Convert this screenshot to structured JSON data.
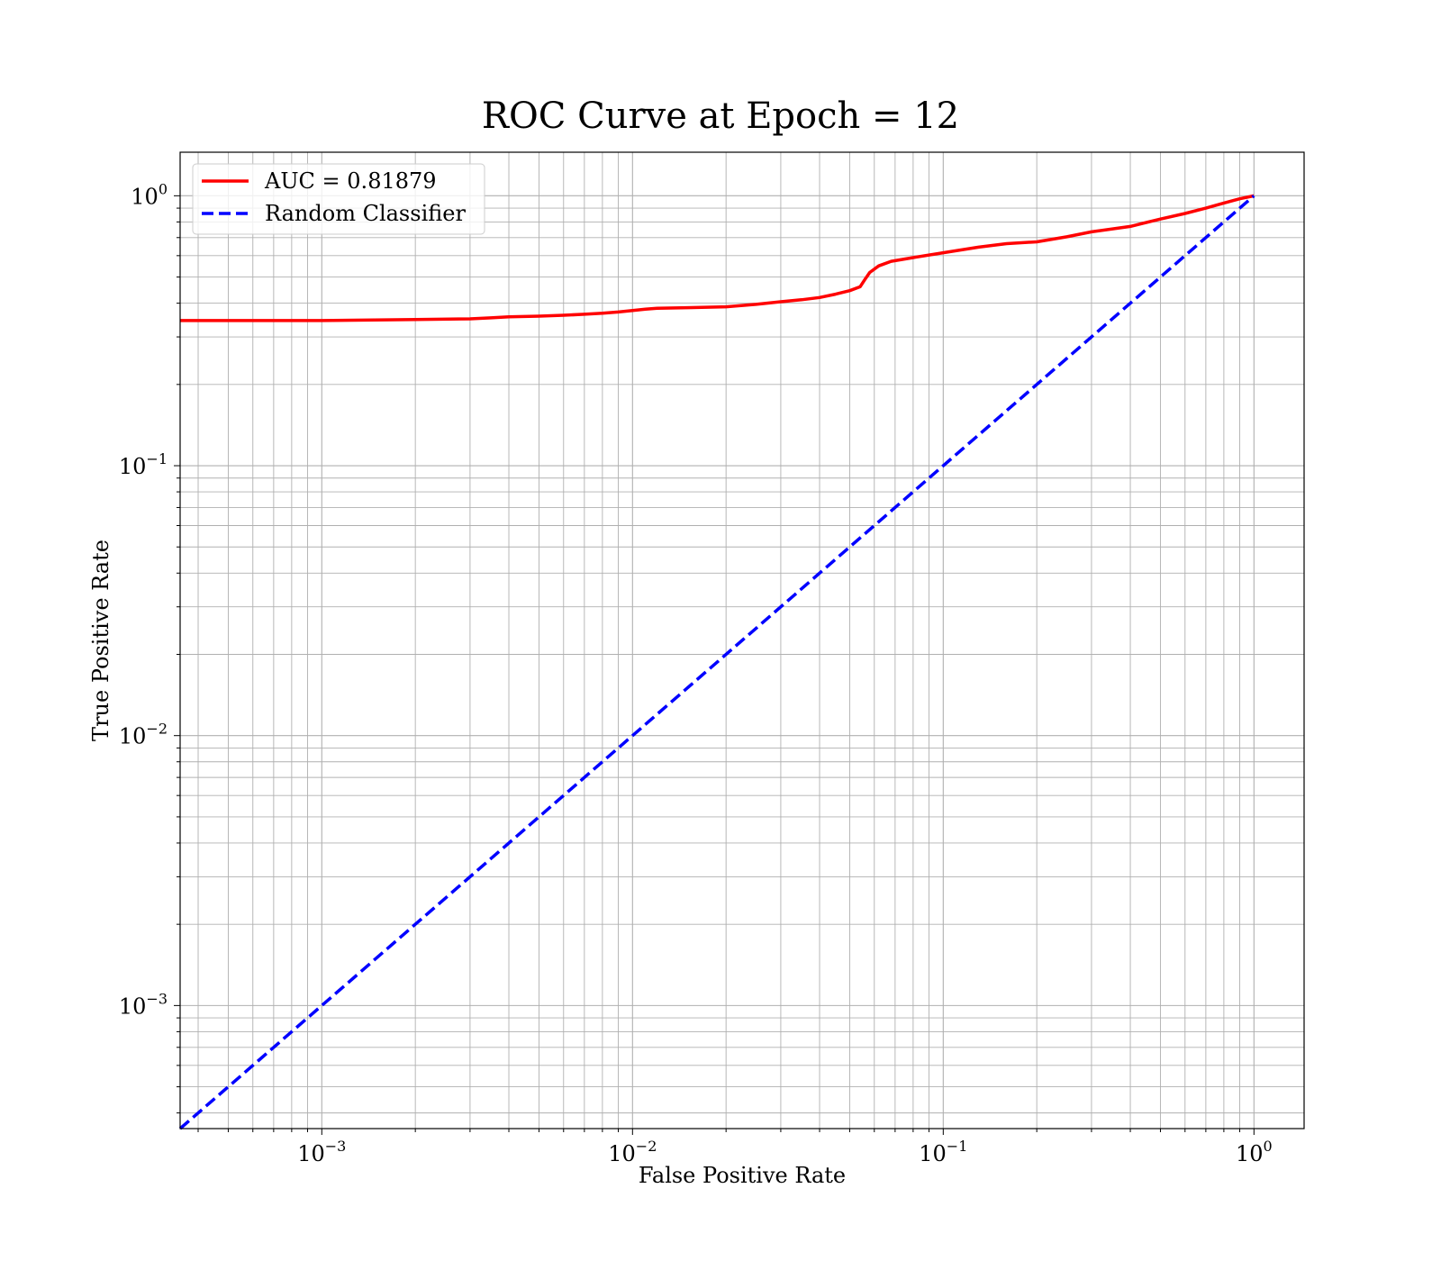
{
  "chart_data": {
    "type": "line",
    "title": "ROC Curve at Epoch = 12",
    "xlabel": "False Positive Rate",
    "ylabel": "True Positive Rate",
    "xscale": "log",
    "yscale": "log",
    "xlim": [
      0.00035,
      1.45
    ],
    "ylim": [
      0.00035,
      1.45
    ],
    "grid": true,
    "grid_which": "both",
    "legend_position": "upper left",
    "x_ticks": [
      {
        "value": 0.001,
        "base": "10",
        "exp": "−3"
      },
      {
        "value": 0.01,
        "base": "10",
        "exp": "−2"
      },
      {
        "value": 0.1,
        "base": "10",
        "exp": "−1"
      },
      {
        "value": 1,
        "base": "10",
        "exp": "0"
      }
    ],
    "y_ticks": [
      {
        "value": 0.001,
        "base": "10",
        "exp": "−3"
      },
      {
        "value": 0.01,
        "base": "10",
        "exp": "−2"
      },
      {
        "value": 0.1,
        "base": "10",
        "exp": "−1"
      },
      {
        "value": 1,
        "base": "10",
        "exp": "0"
      }
    ],
    "series": [
      {
        "name": "AUC = 0.81879",
        "color": "#ff0000",
        "style": "solid",
        "x": [
          0.00035,
          0.001,
          0.002,
          0.003,
          0.0035,
          0.004,
          0.005,
          0.006,
          0.007,
          0.008,
          0.009,
          0.01,
          0.011,
          0.012,
          0.015,
          0.02,
          0.025,
          0.03,
          0.035,
          0.04,
          0.045,
          0.05,
          0.054,
          0.056,
          0.058,
          0.062,
          0.068,
          0.08,
          0.1,
          0.13,
          0.16,
          0.2,
          0.25,
          0.3,
          0.4,
          0.5,
          0.6,
          0.7,
          0.8,
          0.9,
          1.0
        ],
        "y": [
          0.345,
          0.345,
          0.348,
          0.35,
          0.353,
          0.356,
          0.358,
          0.361,
          0.364,
          0.367,
          0.371,
          0.376,
          0.38,
          0.383,
          0.385,
          0.388,
          0.396,
          0.405,
          0.412,
          0.42,
          0.432,
          0.445,
          0.46,
          0.49,
          0.52,
          0.55,
          0.572,
          0.59,
          0.615,
          0.645,
          0.665,
          0.675,
          0.705,
          0.735,
          0.77,
          0.82,
          0.86,
          0.9,
          0.94,
          0.975,
          1.0
        ]
      },
      {
        "name": "Random Classifier",
        "color": "#0000ff",
        "style": "dashed",
        "x": [
          0.00035,
          1.0
        ],
        "y": [
          0.00035,
          1.0
        ]
      }
    ]
  }
}
